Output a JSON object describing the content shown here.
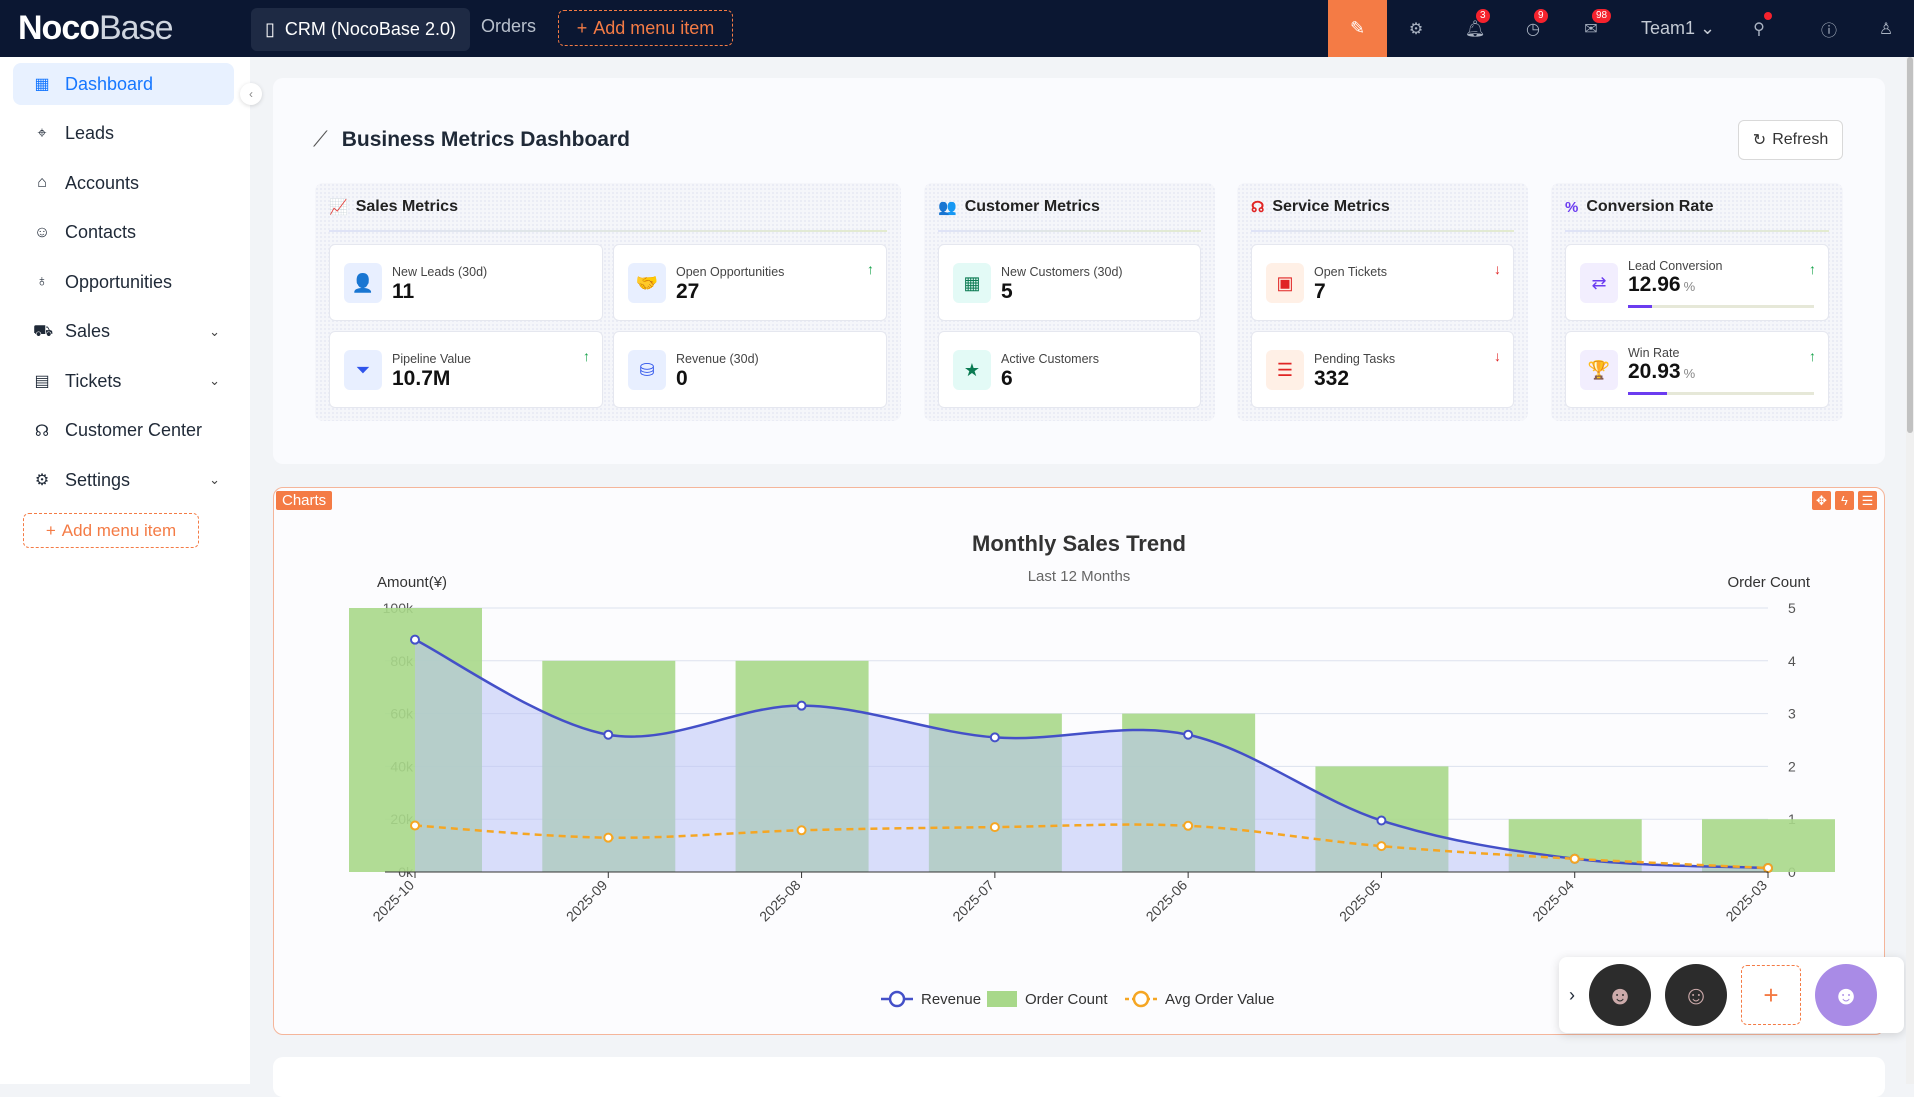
{
  "topbar": {
    "logo_bold": "Noco",
    "logo_light": "Base",
    "app_tab": "CRM (NocoBase 2.0)",
    "orders": "Orders",
    "add_menu": "Add menu item",
    "team": "Team1",
    "badges": {
      "notifications": "3",
      "tasks": "9",
      "messages": "98"
    }
  },
  "sidebar": {
    "items": [
      {
        "label": "Dashboard",
        "icon": "bar-chart-icon",
        "glyph": "▦",
        "active": true
      },
      {
        "label": "Leads",
        "icon": "target-icon",
        "glyph": "⌖"
      },
      {
        "label": "Accounts",
        "icon": "bank-icon",
        "glyph": "⌂"
      },
      {
        "label": "Contacts",
        "icon": "contacts-icon",
        "glyph": "☺"
      },
      {
        "label": "Opportunities",
        "icon": "bulb-icon",
        "glyph": "♁"
      },
      {
        "label": "Sales",
        "icon": "cart-icon",
        "glyph": "⛟",
        "expandable": true
      },
      {
        "label": "Tickets",
        "icon": "file-icon",
        "glyph": "▤",
        "expandable": true
      },
      {
        "label": "Customer Center",
        "icon": "headset-icon",
        "glyph": "☊"
      },
      {
        "label": "Settings",
        "icon": "gear-icon",
        "glyph": "⚙",
        "expandable": true
      }
    ],
    "add_menu": "Add menu item"
  },
  "dashboard": {
    "title": "Business Metrics Dashboard",
    "refresh": "Refresh",
    "groups": [
      {
        "title": "Sales Metrics",
        "icon": "line-chart-icon",
        "glyph": "📈",
        "color": "#2f54eb",
        "bg": "#e8efff",
        "cards": [
          {
            "label": "New Leads (30d)",
            "value": "11",
            "icon": "user-add-icon",
            "glyph": "👤"
          },
          {
            "label": "Open Opportunities",
            "value": "27",
            "icon": "handshake-icon",
            "glyph": "🤝",
            "trend": "up"
          },
          {
            "label": "Pipeline Value",
            "value": "10.7M",
            "icon": "funnel-dollar-icon",
            "glyph": "⏷",
            "trend": "up"
          },
          {
            "label": "Revenue (30d)",
            "value": "0",
            "icon": "coins-icon",
            "glyph": "⛁"
          }
        ]
      },
      {
        "title": "Customer Metrics",
        "icon": "users-icon",
        "glyph": "👥",
        "color": "#0a7a52",
        "bg": "#e3faf6",
        "cards": [
          {
            "label": "New Customers (30d)",
            "value": "5",
            "icon": "building-icon",
            "glyph": "▦"
          },
          {
            "label": "Active Customers",
            "value": "6",
            "icon": "star-icon",
            "glyph": "★"
          }
        ]
      },
      {
        "title": "Service Metrics",
        "icon": "headset-icon",
        "glyph": "☊",
        "color": "#e02424",
        "bg": "#fff0e6",
        "cards": [
          {
            "label": "Open Tickets",
            "value": "7",
            "icon": "ticket-icon",
            "glyph": "▣",
            "trend": "down"
          },
          {
            "label": "Pending Tasks",
            "value": "332",
            "icon": "tasks-icon",
            "glyph": "☰",
            "trend": "down"
          }
        ]
      },
      {
        "title": "Conversion Rate",
        "icon": "percent-icon",
        "glyph": "%",
        "color": "#6b3cf0",
        "bg": "#f2eefe",
        "cards": [
          {
            "label": "Lead Conversion",
            "value": "12.96",
            "unit": "%",
            "icon": "exchange-icon",
            "glyph": "⇄",
            "trend": "up",
            "progress": 12.96
          },
          {
            "label": "Win Rate",
            "value": "20.93",
            "unit": "%",
            "icon": "trophy-icon",
            "glyph": "🏆",
            "trend": "up",
            "progress": 20.93
          }
        ]
      }
    ]
  },
  "charts_tag": "Charts",
  "colors": {
    "revenue": "#4450c8",
    "revenue_fill": "#b9c3f5",
    "orders": "#a8d88a",
    "avg": "#f5a623",
    "accent": "#f47b45",
    "up": "#16a34a",
    "down": "#e02424"
  },
  "chart_data": {
    "type": "bar+line",
    "title": "Monthly Sales Trend",
    "subtitle": "Last 12 Months",
    "ylabel_left": "Amount(¥)",
    "ylabel_right": "Order Count",
    "categories": [
      "2025-10",
      "2025-09",
      "2025-08",
      "2025-07",
      "2025-06",
      "2025-05",
      "2025-04",
      "2025-03"
    ],
    "yleft_ticks": [
      "0k",
      "20k",
      "40k",
      "60k",
      "80k",
      "100k"
    ],
    "yleft_range": [
      0,
      100000
    ],
    "yright_ticks": [
      "0",
      "1",
      "2",
      "3",
      "4",
      "5"
    ],
    "yright_range": [
      0,
      5
    ],
    "series": [
      {
        "name": "Revenue",
        "type": "area-line",
        "axis": "left",
        "values": [
          88000,
          52000,
          63000,
          51000,
          52000,
          19500,
          5000,
          1500
        ]
      },
      {
        "name": "Order Count",
        "type": "bar",
        "axis": "right",
        "values": [
          5,
          4,
          4,
          3,
          3,
          2,
          1,
          1
        ]
      },
      {
        "name": "Avg Order Value",
        "type": "dashed-line",
        "axis": "left",
        "values": [
          17600,
          13000,
          15800,
          17000,
          17500,
          9800,
          5000,
          1500
        ]
      }
    ],
    "legend": "bottom"
  }
}
